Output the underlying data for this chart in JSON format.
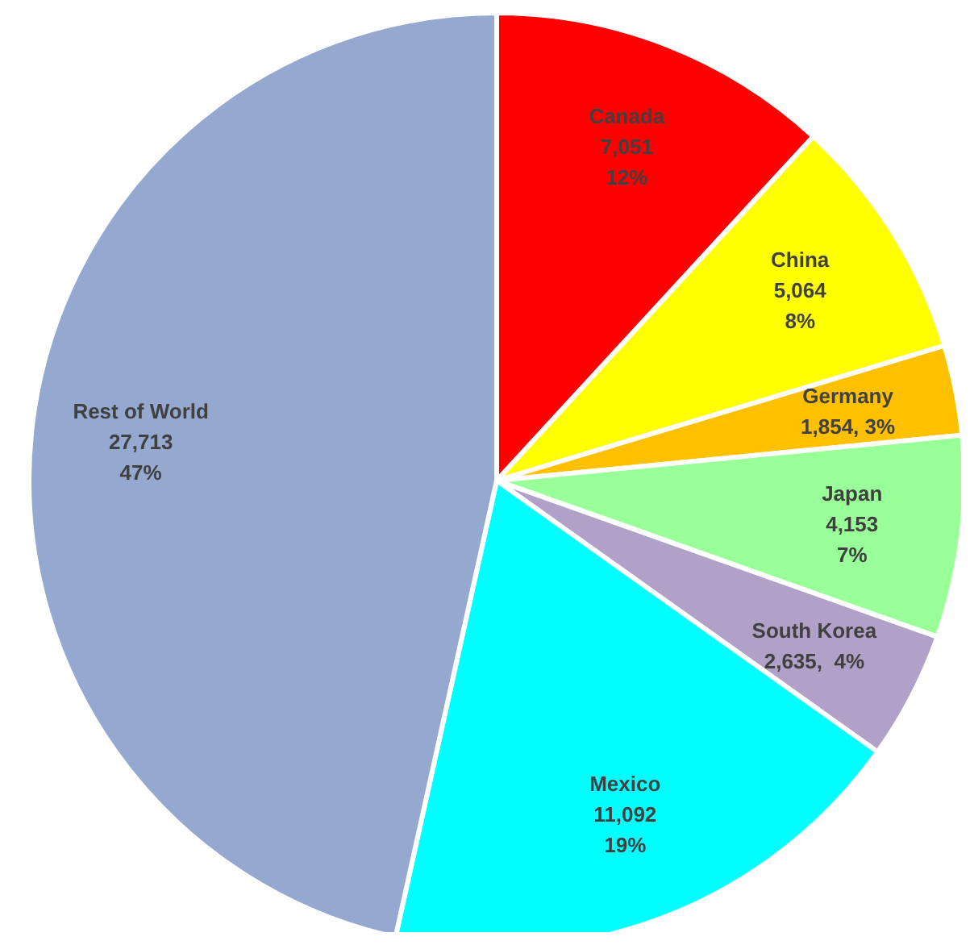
{
  "chart_data": {
    "type": "pie",
    "categories": [
      "Canada",
      "China",
      "Germany",
      "Japan",
      "South Korea",
      "Mexico",
      "Rest of World"
    ],
    "values": [
      7051,
      5064,
      1854,
      4153,
      2635,
      11092,
      27713
    ],
    "colors": [
      "#ff0000",
      "#ffff00",
      "#ffc000",
      "#99ff99",
      "#b1a0c7",
      "#00ffff",
      "#95a9d0"
    ],
    "value_labels": [
      "7,051\n12%",
      "5,064\n8%",
      "1,854, 3%",
      "4,153\n7%",
      "2,635,  4%",
      "11,092\n19%",
      "27,713\n47%"
    ],
    "legend": false
  }
}
